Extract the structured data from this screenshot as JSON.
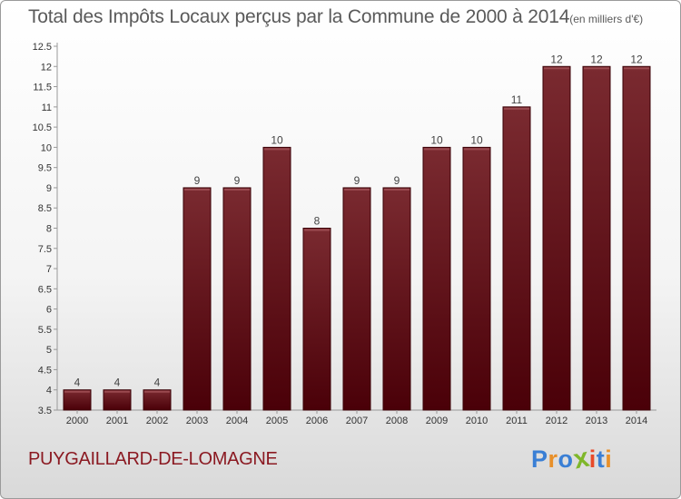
{
  "chart_data": {
    "type": "bar",
    "title": "Total des Impôts Locaux perçus par la Commune de 2000 à 2014",
    "title_unit": "(en milliers d'€)",
    "categories": [
      "2000",
      "2001",
      "2002",
      "2003",
      "2004",
      "2005",
      "2006",
      "2007",
      "2008",
      "2009",
      "2010",
      "2011",
      "2012",
      "2013",
      "2014"
    ],
    "values": [
      4,
      4,
      4,
      9,
      9,
      10,
      8,
      9,
      9,
      10,
      10,
      11,
      12,
      12,
      12
    ],
    "data_labels": [
      "4",
      "4",
      "4",
      "9",
      "9",
      "10",
      "8",
      "9",
      "9",
      "10",
      "10",
      "11",
      "12",
      "12",
      "12"
    ],
    "ylim": [
      3.5,
      12.5
    ],
    "yticks": [
      3.5,
      4,
      4.5,
      5,
      5.5,
      6,
      6.5,
      7,
      7.5,
      8,
      8.5,
      9,
      9.5,
      10,
      10.5,
      11,
      11.5,
      12,
      12.5
    ],
    "ytick_labels": [
      "3.5",
      "4",
      "4.5",
      "5",
      "5.5",
      "6",
      "6.5",
      "7",
      "7.5",
      "8",
      "8.5",
      "9",
      "9.5",
      "10",
      "10.5",
      "11",
      "11.5",
      "12",
      "12.5"
    ],
    "xlabel": "",
    "ylabel": "",
    "grid": false,
    "bar_color": "#7a1018"
  },
  "commune_name": "PUYGAILLARD-DE-LOMAGNE",
  "logo": {
    "letters": [
      "P",
      "r",
      "o",
      "x",
      "i",
      "t",
      "i"
    ],
    "colors": [
      "#3a7fd5",
      "#e8902a",
      "#3a7fd5",
      "#7fb72a",
      "#e84a2a",
      "#3a7fd5",
      "#e8902a"
    ]
  }
}
